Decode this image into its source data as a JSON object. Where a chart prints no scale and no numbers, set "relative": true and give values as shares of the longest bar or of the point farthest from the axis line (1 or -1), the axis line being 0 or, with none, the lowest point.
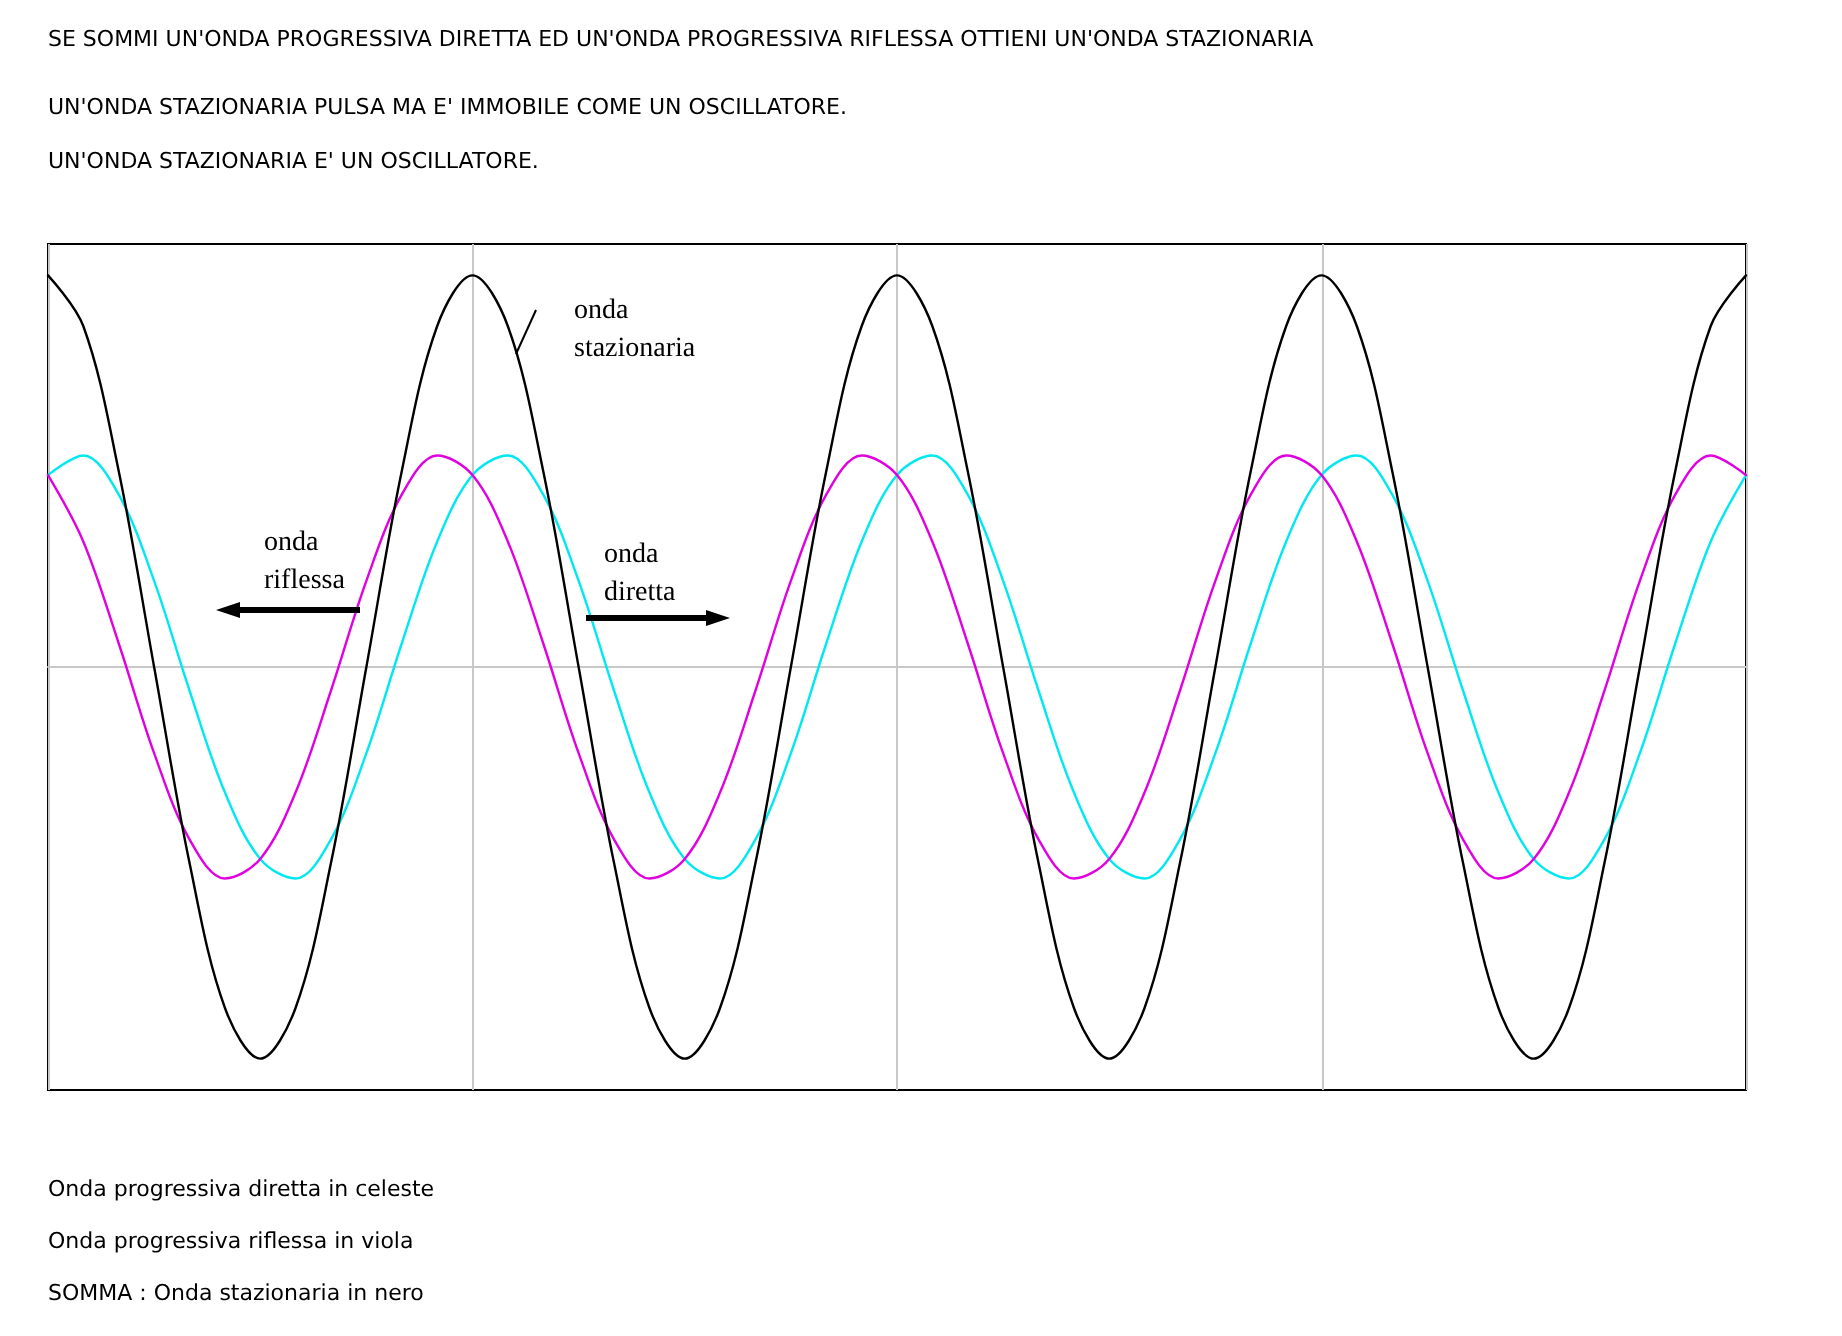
{
  "chart_data": {
    "type": "line",
    "relative": true,
    "grid": true,
    "marker": "none",
    "line_style": "solid",
    "title": "SE SOMMI UN'ONDA PROGRESSIVA DIRETTA ED UN'ONDA PROGRESSIVA RIFLESSA OTTIENI UN'ONDA STAZIONARIA",
    "subtitle": "UN'ONDA STAZIONARIA PULSA MA E' IMMOBILE COME UN OSCILLATORE.\nUN'ONDA STAZIONARIA E' UN OSCILLATORE.",
    "annotations": [
      "Onda progressiva diretta in celeste",
      "Onda progressiva riflessa in viola",
      "SOMMA : Onda stazionaria in nero"
    ],
    "categories": [
      null,
      null,
      null,
      null,
      null,
      null,
      null,
      null,
      null,
      null,
      null,
      null,
      null,
      null,
      null,
      null,
      null,
      null,
      null,
      null,
      null,
      null,
      null,
      null,
      null,
      null,
      null,
      null,
      null,
      null,
      null,
      null,
      null,
      null,
      null,
      null,
      null,
      null,
      null,
      null,
      null,
      null,
      null,
      null,
      null,
      null,
      null,
      null,
      null
    ],
    "series": [
      {
        "name": "onda diretta",
        "color": "#00e8f0",
        "values": [
          0.49,
          0.54,
          0.44,
          0.22,
          -0.06,
          -0.32,
          -0.49,
          -0.54,
          -0.44,
          -0.22,
          0.06,
          0.32,
          0.49,
          0.54,
          0.44,
          0.22,
          -0.06,
          -0.32,
          -0.49,
          -0.54,
          -0.44,
          -0.22,
          0.06,
          0.32,
          0.49,
          0.54,
          0.44,
          0.22,
          -0.06,
          -0.32,
          -0.49,
          -0.54,
          -0.44,
          -0.22,
          0.06,
          0.32,
          0.49,
          0.54,
          0.44,
          0.22,
          -0.06,
          -0.32,
          -0.49,
          -0.54,
          -0.44,
          -0.22,
          0.06,
          0.32,
          0.49
        ]
      },
      {
        "name": "onda riflessa",
        "color": "#e000e0",
        "values": [
          0.49,
          0.32,
          0.06,
          -0.22,
          -0.44,
          -0.54,
          -0.49,
          -0.32,
          -0.06,
          0.22,
          0.44,
          0.54,
          0.49,
          0.32,
          0.06,
          -0.22,
          -0.44,
          -0.54,
          -0.49,
          -0.32,
          -0.06,
          0.22,
          0.44,
          0.54,
          0.49,
          0.32,
          0.06,
          -0.22,
          -0.44,
          -0.54,
          -0.49,
          -0.32,
          -0.06,
          0.22,
          0.44,
          0.54,
          0.49,
          0.32,
          0.06,
          -0.22,
          -0.44,
          -0.54,
          -0.49,
          -0.32,
          -0.06,
          0.22,
          0.44,
          0.54,
          0.49
        ]
      },
      {
        "name": "onda stazionaria",
        "color": "#000000",
        "values": [
          1,
          0.87,
          0.5,
          0,
          -0.5,
          -0.87,
          -1,
          -0.87,
          -0.5,
          0,
          0.5,
          0.87,
          1,
          0.87,
          0.5,
          0,
          -0.5,
          -0.87,
          -1,
          -0.87,
          -0.5,
          0,
          0.5,
          0.87,
          1,
          0.87,
          0.5,
          0,
          -0.5,
          -0.87,
          -1,
          -0.87,
          -0.5,
          0,
          0.5,
          0.87,
          1,
          0.87,
          0.5,
          0,
          -0.5,
          -0.87,
          -1,
          -0.87,
          -0.5,
          0,
          0.5,
          0.87,
          1
        ]
      }
    ]
  }
}
